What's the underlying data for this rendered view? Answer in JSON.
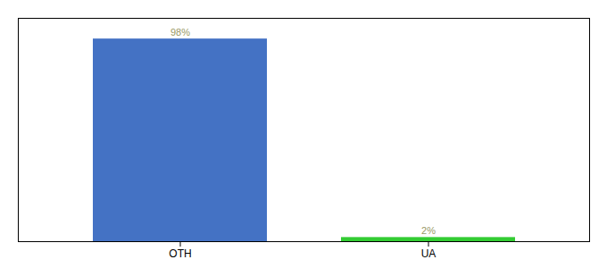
{
  "chart_data": {
    "type": "bar",
    "categories": [
      "OTH",
      "UA"
    ],
    "values": [
      98,
      2
    ],
    "value_labels": [
      "98%",
      "2%"
    ],
    "data_labels": true,
    "colors": [
      "#4472C4",
      "#33CC33"
    ],
    "ylim": [
      0,
      108
    ],
    "tick_labels": "x",
    "grid": false
  }
}
